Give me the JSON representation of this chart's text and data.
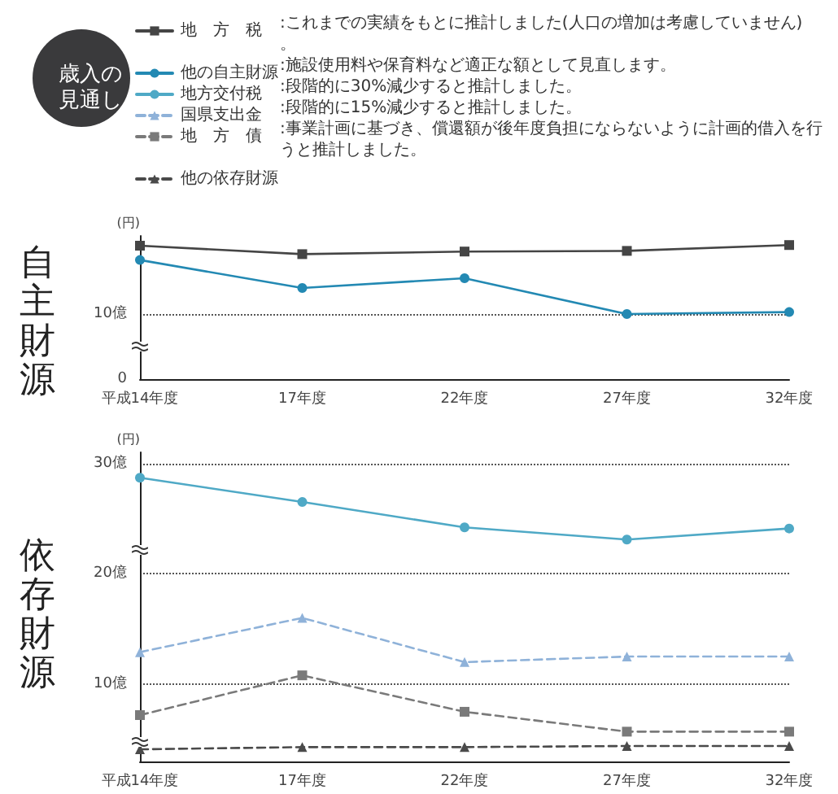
{
  "chart_data": [
    {
      "type": "line",
      "title": "歳入の見通し",
      "subtitle": "自主財源",
      "ylabel": "(円)",
      "categories": [
        "平成14年度",
        "17年度",
        "22年度",
        "27年度",
        "32年度"
      ],
      "ylim": [
        0,
        22
      ],
      "yticks": [
        0,
        {
          "value": 10,
          "label": "10億"
        }
      ],
      "grid": "y",
      "legend": "top",
      "annotations": [
        ":これまでの実績をもとに推計しました(人口の増加は考慮していません)。",
        ":施設使用料や保育料など適正な額として見直します。"
      ],
      "series": [
        {
          "name": "地　方　税",
          "color": "#454545",
          "marker": "square",
          "line_style": "solid",
          "values": [
            20.5,
            19.2,
            19.6,
            19.7,
            20.6
          ]
        },
        {
          "name": "他の自主財源",
          "color": "#2389b3",
          "marker": "circle",
          "line_style": "solid",
          "values": [
            18.3,
            14.0,
            15.5,
            10.0,
            10.3
          ]
        }
      ]
    },
    {
      "type": "line",
      "subtitle": "依存財源",
      "ylabel": "(円)",
      "categories": [
        "平成14年度",
        "17年度",
        "22年度",
        "27年度",
        "32年度"
      ],
      "ylim": [
        3,
        31
      ],
      "yticks": [
        {
          "value": 10,
          "label": "10億"
        },
        {
          "value": 20,
          "label": "20億"
        },
        {
          "value": 30,
          "label": "30億"
        }
      ],
      "grid": "y",
      "legend": "top",
      "annotations": [
        ":段階的に30%減少すると推計しました。",
        ":段階的に15%減少すると推計しました。",
        ":事業計画に基づき、償還額が後年度負担にならないように計画的借入を行うと推計しました。"
      ],
      "series": [
        {
          "name": "地方交付税",
          "color": "#4fa9c6",
          "marker": "circle",
          "line_style": "solid",
          "values": [
            28.7,
            26.5,
            24.2,
            23.1,
            24.1
          ]
        },
        {
          "name": "国県支出金",
          "color": "#8fb2d9",
          "marker": "triangle",
          "line_style": "dashed",
          "values": [
            12.9,
            16.0,
            12.0,
            12.5,
            12.5
          ]
        },
        {
          "name": "地　方　債",
          "color": "#7a7a7a",
          "marker": "square",
          "line_style": "dashed",
          "values": [
            7.2,
            10.8,
            7.5,
            5.7,
            5.7
          ]
        },
        {
          "name": "他の依存財源",
          "color": "#4a4a4a",
          "marker": "triangle",
          "line_style": "dashed",
          "values": [
            4.1,
            4.3,
            4.3,
            4.4,
            4.4
          ]
        }
      ]
    }
  ]
}
